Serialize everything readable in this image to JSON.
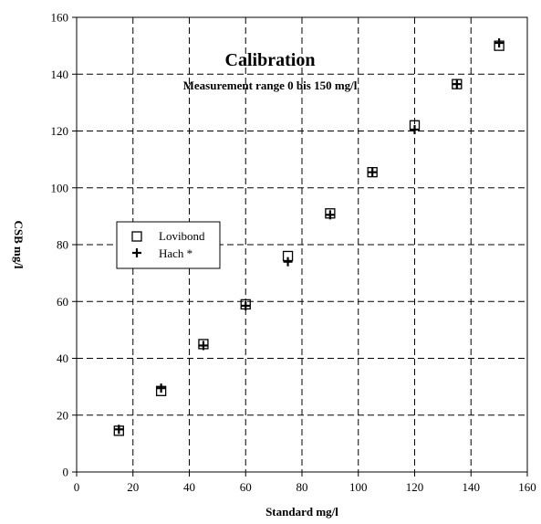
{
  "chart_data": {
    "type": "scatter",
    "title": "Calibration",
    "subtitle": "Measurement range 0 bis 150 mg/l",
    "xlabel": "Standard mg/l",
    "ylabel": "CSB mg/l",
    "xlim": [
      0,
      160
    ],
    "ylim": [
      0,
      160
    ],
    "xticks": [
      0,
      20,
      40,
      60,
      80,
      100,
      120,
      140,
      160
    ],
    "yticks": [
      0,
      20,
      40,
      60,
      80,
      100,
      120,
      140,
      160
    ],
    "grid": true,
    "grid_style": "dashed",
    "legend_position": "left-middle",
    "series": [
      {
        "name": "Lovibond",
        "marker": "open-square",
        "x": [
          15,
          30,
          45,
          60,
          75,
          90,
          105,
          120,
          135,
          150
        ],
        "y": [
          14.5,
          28.5,
          45,
          59,
          76,
          91,
          105.5,
          122,
          136.5,
          150
        ]
      },
      {
        "name": "Hach *",
        "marker": "plus",
        "x": [
          15,
          30,
          45,
          60,
          75,
          90,
          105,
          120,
          135,
          150
        ],
        "y": [
          15,
          29.5,
          44.5,
          58.5,
          74,
          90.5,
          105.5,
          120.5,
          136.5,
          151
        ]
      }
    ]
  }
}
